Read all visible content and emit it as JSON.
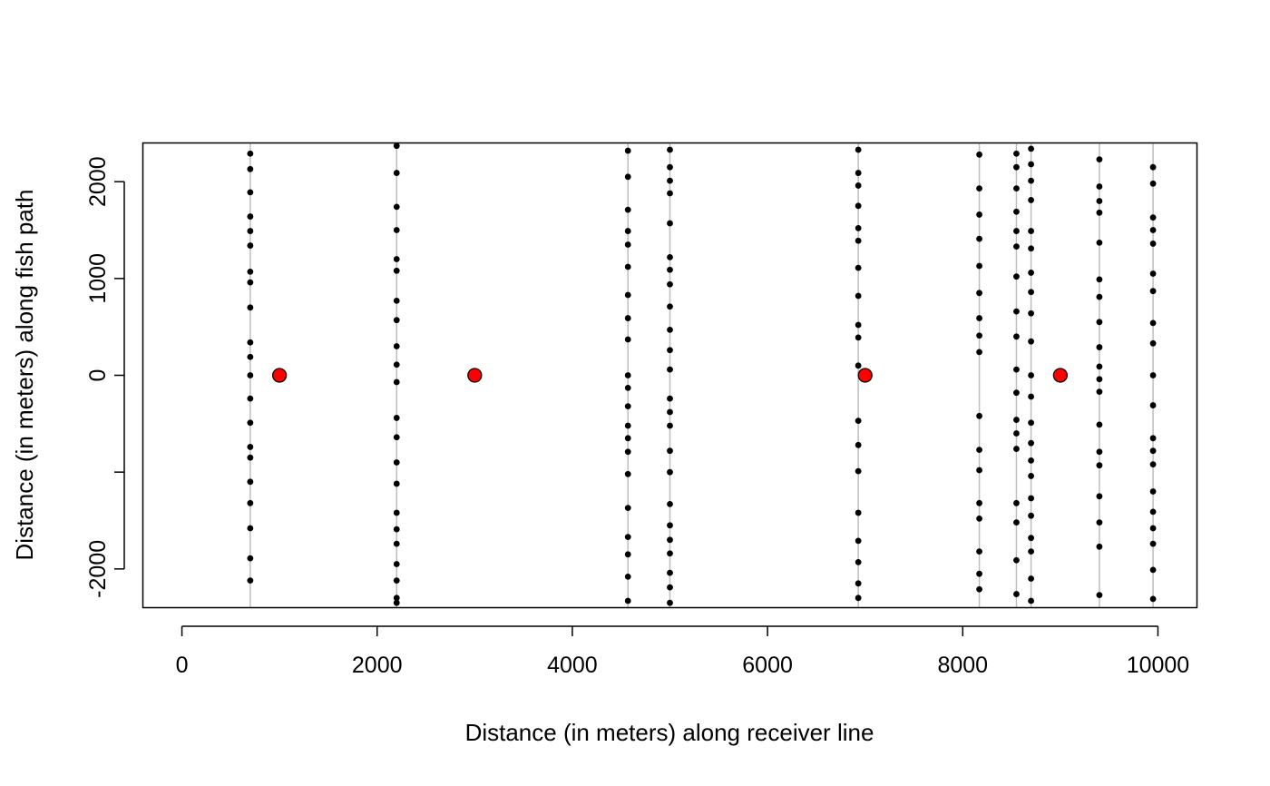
{
  "chart_data": {
    "type": "scatter",
    "title": "",
    "xlabel": "Distance (in meters) along receiver line",
    "ylabel": "Distance (in meters) along fish path",
    "xlim": [
      -400,
      10400
    ],
    "ylim": [
      -2400,
      2400
    ],
    "x_ticks": [
      0,
      2000,
      4000,
      6000,
      8000,
      10000
    ],
    "x_tick_labels": [
      "0",
      "2000",
      "4000",
      "6000",
      "8000",
      "10000"
    ],
    "y_ticks": [
      -2000,
      -1000,
      0,
      1000,
      2000
    ],
    "y_tick_labels": [
      "-2000",
      "",
      "0",
      "1000",
      "2000"
    ],
    "grid": false,
    "legend": "none",
    "colors": {
      "receiver_line": "#bebebe",
      "detection_point": "#000000",
      "fish_point": "#ff0000",
      "axis": "#000000"
    },
    "receiver_lines": [
      {
        "x": 700,
        "y": [
          2290,
          2130,
          1890,
          1640,
          1490,
          1340,
          1070,
          960,
          700,
          340,
          190,
          0,
          -240,
          -490,
          -740,
          -850,
          -1100,
          -1320,
          -1580,
          -1890,
          -2120
        ]
      },
      {
        "x": 2200,
        "y": [
          2370,
          2090,
          1740,
          1500,
          1200,
          1080,
          770,
          570,
          300,
          110,
          -70,
          -440,
          -640,
          -900,
          -1120,
          -1420,
          -1590,
          -1740,
          -1950,
          -2120,
          -2300,
          -2350
        ]
      },
      {
        "x": 4570,
        "y": [
          2320,
          2050,
          1710,
          1490,
          1350,
          1120,
          830,
          590,
          370,
          0,
          -130,
          -320,
          -520,
          -650,
          -790,
          -1020,
          -1370,
          -1670,
          -1850,
          -2080,
          -2330
        ]
      },
      {
        "x": 5000,
        "y": [
          2330,
          2150,
          2010,
          1880,
          1570,
          1220,
          1090,
          940,
          710,
          470,
          260,
          60,
          -240,
          -380,
          -520,
          -780,
          -1000,
          -1330,
          -1550,
          -1700,
          -1840,
          -2040,
          -2190,
          -2350
        ]
      },
      {
        "x": 6930,
        "y": [
          2330,
          2090,
          1960,
          1750,
          1520,
          1390,
          1110,
          820,
          520,
          390,
          100,
          -470,
          -720,
          -990,
          -1420,
          -1710,
          -1930,
          -2150,
          -2300
        ]
      },
      {
        "x": 8170,
        "y": [
          2280,
          1930,
          1660,
          1410,
          1130,
          850,
          590,
          410,
          240,
          -420,
          -770,
          -980,
          -1320,
          -1480,
          -1820,
          -2050,
          -2210
        ]
      },
      {
        "x": 8550,
        "y": [
          2290,
          2150,
          1930,
          1690,
          1490,
          1330,
          1020,
          660,
          400,
          60,
          -180,
          -460,
          -600,
          -760,
          -1320,
          -1520,
          -1910,
          -2260
        ]
      },
      {
        "x": 8700,
        "y": [
          2340,
          2180,
          2010,
          1810,
          1490,
          1310,
          1060,
          860,
          640,
          350,
          0,
          -220,
          -490,
          -700,
          -880,
          -1040,
          -1270,
          -1450,
          -1680,
          -1820,
          -2100,
          -2330
        ]
      },
      {
        "x": 9400,
        "y": [
          2230,
          1950,
          1800,
          1680,
          1370,
          990,
          810,
          550,
          290,
          90,
          -40,
          -170,
          -510,
          -790,
          -930,
          -1250,
          -1520,
          -1770,
          -2270
        ]
      },
      {
        "x": 9950,
        "y": [
          2150,
          1980,
          1630,
          1500,
          1360,
          1050,
          870,
          540,
          330,
          0,
          -310,
          -650,
          -780,
          -920,
          -1200,
          -1410,
          -1580,
          -1740,
          -2010,
          -2310
        ]
      }
    ],
    "fish_positions": [
      {
        "x": 1000,
        "y": 0
      },
      {
        "x": 3000,
        "y": 0
      },
      {
        "x": 7000,
        "y": 0
      },
      {
        "x": 9000,
        "y": 0
      }
    ]
  }
}
